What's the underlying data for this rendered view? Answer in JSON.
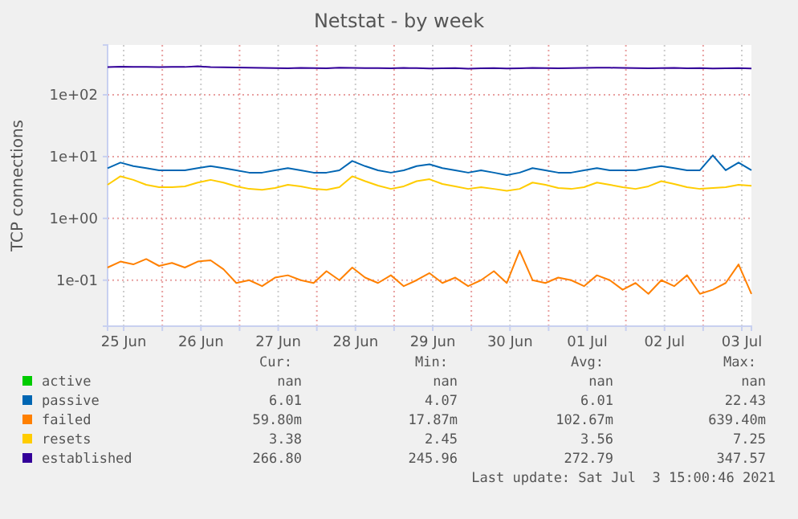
{
  "chart_data": {
    "type": "line",
    "title": "Netstat - by week",
    "ylabel": "TCP connections",
    "log": true,
    "grid": true,
    "legend": "bottom",
    "ylim": [
      0.018,
      640
    ],
    "yticks": [
      {
        "value": 0.1,
        "label": "1e-01"
      },
      {
        "value": 1,
        "label": "1e+00"
      },
      {
        "value": 10,
        "label": "1e+01"
      },
      {
        "value": 100,
        "label": "1e+02"
      }
    ],
    "xlim": [
      "2021-06-25T07:00",
      "2021-07-03T15:00"
    ],
    "xticks": [
      {
        "value": "2021-06-25T12:00",
        "label": "25 Jun"
      },
      {
        "value": "2021-06-26T00:00",
        "label": null
      },
      {
        "value": "2021-06-26T12:00",
        "label": "26 Jun"
      },
      {
        "value": "2021-06-27T00:00",
        "label": null
      },
      {
        "value": "2021-06-27T12:00",
        "label": "27 Jun"
      },
      {
        "value": "2021-06-28T00:00",
        "label": null
      },
      {
        "value": "2021-06-28T12:00",
        "label": "28 Jun"
      },
      {
        "value": "2021-06-29T00:00",
        "label": null
      },
      {
        "value": "2021-06-29T12:00",
        "label": "29 Jun"
      },
      {
        "value": "2021-06-30T00:00",
        "label": null
      },
      {
        "value": "2021-06-30T12:00",
        "label": "30 Jun"
      },
      {
        "value": "2021-07-01T00:00",
        "label": null
      },
      {
        "value": "2021-07-01T12:00",
        "label": "01 Jul"
      },
      {
        "value": "2021-07-02T00:00",
        "label": null
      },
      {
        "value": "2021-07-02T12:00",
        "label": "02 Jul"
      },
      {
        "value": "2021-07-03T00:00",
        "label": null
      },
      {
        "value": "2021-07-03T12:00",
        "label": "03 Jul"
      }
    ],
    "x": [
      "2021-06-25T07:00",
      "2021-06-25T11:00",
      "2021-06-25T15:00",
      "2021-06-25T19:00",
      "2021-06-25T23:00",
      "2021-06-26T03:00",
      "2021-06-26T07:00",
      "2021-06-26T11:00",
      "2021-06-26T15:00",
      "2021-06-26T19:00",
      "2021-06-26T23:00",
      "2021-06-27T03:00",
      "2021-06-27T07:00",
      "2021-06-27T11:00",
      "2021-06-27T15:00",
      "2021-06-27T19:00",
      "2021-06-27T23:00",
      "2021-06-28T03:00",
      "2021-06-28T07:00",
      "2021-06-28T11:00",
      "2021-06-28T15:00",
      "2021-06-28T19:00",
      "2021-06-28T23:00",
      "2021-06-29T03:00",
      "2021-06-29T07:00",
      "2021-06-29T11:00",
      "2021-06-29T15:00",
      "2021-06-29T19:00",
      "2021-06-29T23:00",
      "2021-06-30T03:00",
      "2021-06-30T07:00",
      "2021-06-30T11:00",
      "2021-06-30T15:00",
      "2021-06-30T19:00",
      "2021-06-30T23:00",
      "2021-07-01T03:00",
      "2021-07-01T07:00",
      "2021-07-01T11:00",
      "2021-07-01T15:00",
      "2021-07-01T19:00",
      "2021-07-01T23:00",
      "2021-07-02T03:00",
      "2021-07-02T07:00",
      "2021-07-02T11:00",
      "2021-07-02T15:00",
      "2021-07-02T19:00",
      "2021-07-02T23:00",
      "2021-07-03T03:00",
      "2021-07-03T07:00",
      "2021-07-03T11:00",
      "2021-07-03T15:00"
    ],
    "series": [
      {
        "name": "active",
        "color": "#00cc00",
        "values": [
          null,
          null,
          null,
          null,
          null,
          null,
          null,
          null,
          null,
          null,
          null,
          null,
          null,
          null,
          null,
          null,
          null,
          null,
          null,
          null,
          null,
          null,
          null,
          null,
          null,
          null,
          null,
          null,
          null,
          null,
          null,
          null,
          null,
          null,
          null,
          null,
          null,
          null,
          null,
          null,
          null,
          null,
          null,
          null,
          null,
          null,
          null,
          null,
          null,
          null,
          null
        ]
      },
      {
        "name": "passive",
        "color": "#0066b3",
        "values": [
          6.5,
          8,
          7,
          6.5,
          6,
          6,
          6,
          6.5,
          7,
          6.5,
          6,
          5.5,
          5.5,
          6,
          6.5,
          6,
          5.5,
          5.5,
          6,
          8.5,
          7,
          6,
          5.5,
          6,
          7,
          7.5,
          6.5,
          6,
          5.5,
          6,
          5.5,
          5,
          5.5,
          6.5,
          6,
          5.5,
          5.5,
          6,
          6.5,
          6,
          6,
          6,
          6.5,
          7,
          6.5,
          6,
          6,
          10.5,
          6,
          8,
          6.01
        ]
      },
      {
        "name": "failed",
        "color": "#ff8000",
        "values": [
          0.16,
          0.2,
          0.18,
          0.22,
          0.17,
          0.19,
          0.16,
          0.2,
          0.21,
          0.15,
          0.09,
          0.1,
          0.08,
          0.11,
          0.12,
          0.1,
          0.09,
          0.14,
          0.1,
          0.16,
          0.11,
          0.09,
          0.12,
          0.08,
          0.1,
          0.13,
          0.09,
          0.11,
          0.08,
          0.1,
          0.14,
          0.09,
          0.3,
          0.1,
          0.09,
          0.11,
          0.1,
          0.08,
          0.12,
          0.1,
          0.07,
          0.09,
          0.06,
          0.1,
          0.08,
          0.12,
          0.06,
          0.07,
          0.09,
          0.18,
          0.06
        ]
      },
      {
        "name": "resets",
        "color": "#ffcc00",
        "values": [
          3.5,
          4.8,
          4.2,
          3.5,
          3.2,
          3.2,
          3.3,
          3.8,
          4.2,
          3.8,
          3.3,
          3.0,
          2.9,
          3.1,
          3.5,
          3.3,
          3.0,
          2.9,
          3.2,
          4.8,
          4.0,
          3.4,
          3.0,
          3.3,
          4.0,
          4.3,
          3.6,
          3.3,
          3.0,
          3.2,
          3.0,
          2.8,
          3.0,
          3.8,
          3.5,
          3.1,
          3.0,
          3.2,
          3.8,
          3.5,
          3.2,
          3.0,
          3.3,
          4.0,
          3.6,
          3.2,
          3.0,
          3.1,
          3.2,
          3.5,
          3.38
        ]
      },
      {
        "name": "established",
        "color": "#330099",
        "values": [
          280,
          285,
          282,
          284,
          280,
          283,
          282,
          290,
          280,
          278,
          276,
          275,
          272,
          270,
          268,
          272,
          270,
          268,
          275,
          272,
          270,
          270,
          268,
          272,
          270,
          266,
          268,
          270,
          265,
          268,
          270,
          266,
          268,
          272,
          270,
          268,
          270,
          272,
          275,
          274,
          272,
          270,
          268,
          270,
          272,
          268,
          270,
          266,
          268,
          270,
          266.8
        ]
      }
    ],
    "annotations": [
      "Cur:",
      "Min:",
      "Avg:",
      "Max:",
      "nan",
      "nan",
      "nan",
      "nan",
      "6.01",
      "4.07",
      "6.01",
      "22.43",
      "59.80m",
      "17.87m",
      "102.67m",
      "639.40m",
      "3.38",
      "2.45",
      "3.56",
      "7.25",
      "266.80",
      "245.96",
      "272.79",
      "347.57",
      "Last update: Sat Jul  3 15:00:46 2021"
    ]
  }
}
